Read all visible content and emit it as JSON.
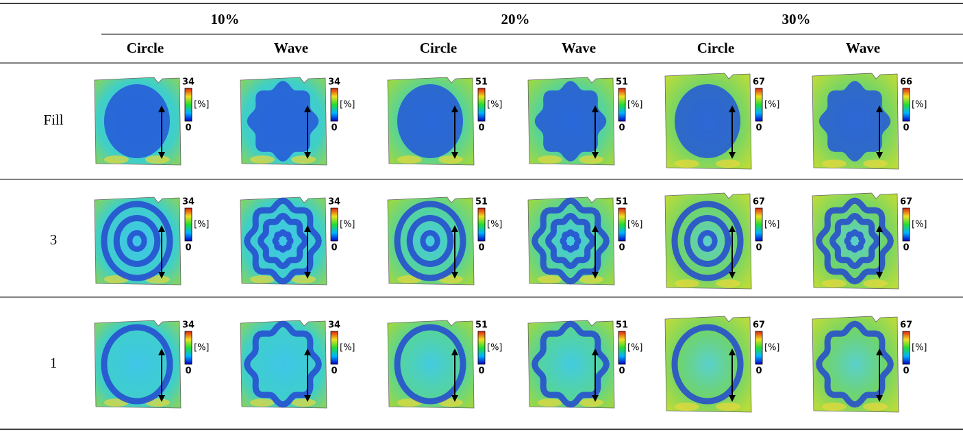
{
  "table": {
    "groups": [
      "10%",
      "20%",
      "30%"
    ],
    "columns": [
      "Circle",
      "Wave",
      "Circle",
      "Wave",
      "Circle",
      "Wave"
    ],
    "rows": [
      {
        "label": "Fill",
        "cells": [
          {
            "max": "34",
            "min": "0",
            "unit": "[%]"
          },
          {
            "max": "34",
            "min": "0",
            "unit": "[%]"
          },
          {
            "max": "51",
            "min": "0",
            "unit": "[%]"
          },
          {
            "max": "51",
            "min": "0",
            "unit": "[%]"
          },
          {
            "max": "67",
            "min": "0",
            "unit": "[%]"
          },
          {
            "max": "66",
            "min": "0",
            "unit": "[%]"
          }
        ]
      },
      {
        "label": "3",
        "cells": [
          {
            "max": "34",
            "min": "0",
            "unit": "[%]"
          },
          {
            "max": "34",
            "min": "0",
            "unit": "[%]"
          },
          {
            "max": "51",
            "min": "0",
            "unit": "[%]"
          },
          {
            "max": "51",
            "min": "0",
            "unit": "[%]"
          },
          {
            "max": "67",
            "min": "0",
            "unit": "[%]"
          },
          {
            "max": "67",
            "min": "0",
            "unit": "[%]"
          }
        ]
      },
      {
        "label": "1",
        "cells": [
          {
            "max": "34",
            "min": "0",
            "unit": "[%]"
          },
          {
            "max": "34",
            "min": "0",
            "unit": "[%]"
          },
          {
            "max": "51",
            "min": "0",
            "unit": "[%]"
          },
          {
            "max": "51",
            "min": "0",
            "unit": "[%]"
          },
          {
            "max": "67",
            "min": "0",
            "unit": "[%]"
          },
          {
            "max": "67",
            "min": "0",
            "unit": "[%]"
          }
        ]
      }
    ]
  }
}
